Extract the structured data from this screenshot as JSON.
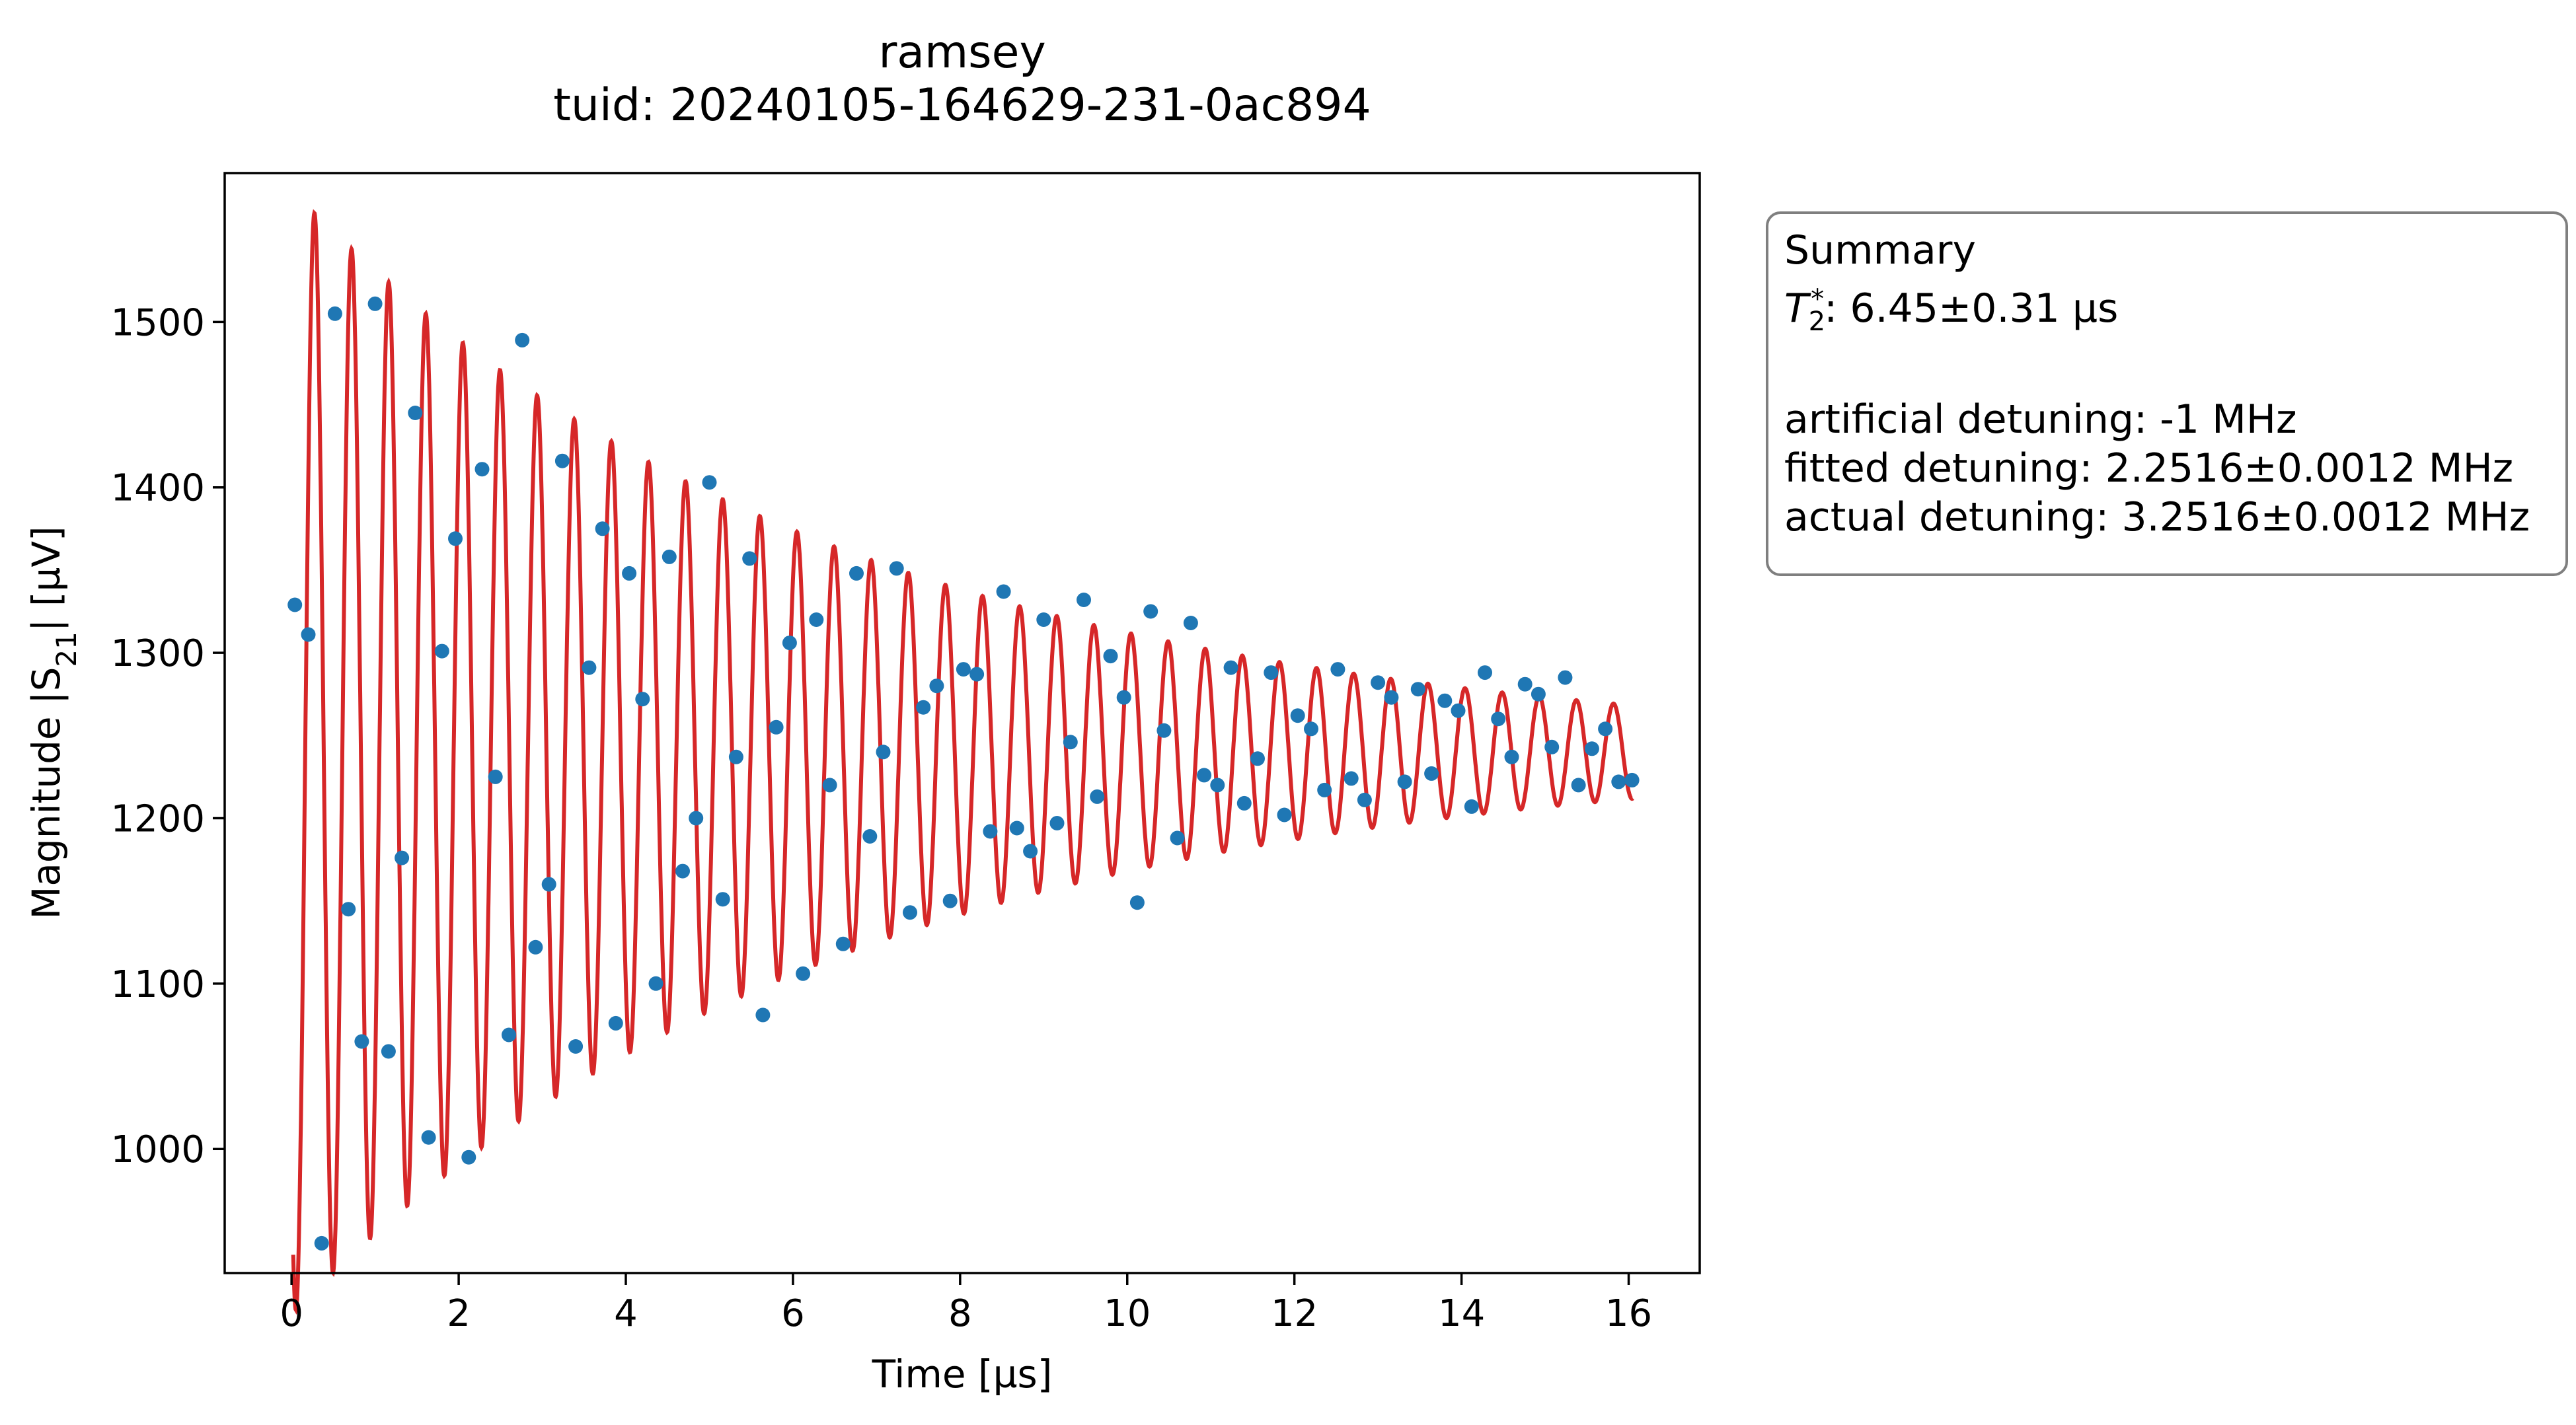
{
  "chart_data": {
    "type": "scatter",
    "title": "ramsey",
    "subtitle": "tuid: 20240105-164629-231-0ac894",
    "xlabel": "Time [µs]",
    "ylabel_prefix": "Magnitude |S",
    "ylabel_sub": "21",
    "ylabel_suffix": "| [µV]",
    "xlim": [
      -0.8,
      16.85
    ],
    "ylim": [
      925,
      1590
    ],
    "xticks": [
      0,
      2,
      4,
      6,
      8,
      10,
      12,
      14,
      16
    ],
    "yticks": [
      1000,
      1100,
      1200,
      1300,
      1400,
      1500
    ],
    "grid": false,
    "colors": {
      "data": "#1f77b4",
      "fit": "#d62728",
      "box_border": "#7f7f7f"
    },
    "series": [
      {
        "kind": "scatter",
        "x": [
          0.04,
          0.2,
          0.36,
          0.52,
          0.68,
          0.84,
          1.0,
          1.16,
          1.32,
          1.48,
          1.64,
          1.8,
          1.96,
          2.12,
          2.28,
          2.44,
          2.6,
          2.76,
          2.92,
          3.08,
          3.24,
          3.4,
          3.56,
          3.72,
          3.88,
          4.04,
          4.2,
          4.36,
          4.52,
          4.68,
          4.84,
          5.0,
          5.16,
          5.32,
          5.48,
          5.64,
          5.8,
          5.96,
          6.12,
          6.28,
          6.44,
          6.6,
          6.76,
          6.92,
          7.08,
          7.24,
          7.4,
          7.56,
          7.72,
          7.88,
          8.04,
          8.2,
          8.36,
          8.52,
          8.68,
          8.84,
          9.0,
          9.16,
          9.32,
          9.48,
          9.64,
          9.8,
          9.96,
          10.12,
          10.28,
          10.44,
          10.6,
          10.76,
          10.92,
          11.08,
          11.24,
          11.4,
          11.56,
          11.72,
          11.88,
          12.04,
          12.2,
          12.36,
          12.52,
          12.68,
          12.84,
          13.0,
          13.16,
          13.32,
          13.48,
          13.64,
          13.8,
          13.96,
          14.12,
          14.28,
          14.44,
          14.6,
          14.76,
          14.92,
          15.08,
          15.24,
          15.4,
          15.56,
          15.72,
          15.88,
          16.04
        ],
        "y": [
          1329,
          1311,
          943,
          1505,
          1145,
          1065,
          1511,
          1059,
          1176,
          1445,
          1007,
          1301,
          1369,
          995,
          1411,
          1225,
          1069,
          1489,
          1122,
          1160,
          1416,
          1062,
          1291,
          1375,
          1076,
          1348,
          1272,
          1100,
          1358,
          1168,
          1200,
          1403,
          1151,
          1237,
          1357,
          1081,
          1255,
          1306,
          1106,
          1320,
          1220,
          1124,
          1348,
          1189,
          1240,
          1351,
          1143,
          1267,
          1280,
          1150,
          1290,
          1287,
          1192,
          1337,
          1194,
          1180,
          1320,
          1197,
          1246,
          1332,
          1213,
          1298,
          1273,
          1149,
          1325,
          1253,
          1188,
          1318,
          1226,
          1220,
          1291,
          1209,
          1236,
          1288,
          1202,
          1262,
          1254,
          1217,
          1290,
          1224,
          1211,
          1282,
          1273,
          1222,
          1278,
          1227,
          1271,
          1265,
          1207,
          1288,
          1260,
          1237,
          1281,
          1275,
          1243,
          1285,
          1220,
          1242,
          1254,
          1222,
          1223
        ]
      },
      {
        "kind": "fit",
        "model": "offset + amplitude * exp(-t / T2) * cos(2π f t + phase)",
        "offset": 1240,
        "amplitude": 340,
        "T2": 6.45,
        "frequency": 2.2516,
        "phase": 2.4,
        "t_range": [
          0.02,
          16.05
        ]
      }
    ]
  },
  "summary": {
    "heading": "Summary",
    "t2_symbol": "T",
    "t2_sub": "2",
    "t2_sup": "*",
    "t2_value": ": 6.45±0.31 µs",
    "artificial_detuning": "artificial detuning: -1 MHz",
    "fitted_detuning": "fitted detuning: 2.2516±0.0012 MHz",
    "actual_detuning": "actual detuning: 3.2516±0.0012 MHz"
  }
}
